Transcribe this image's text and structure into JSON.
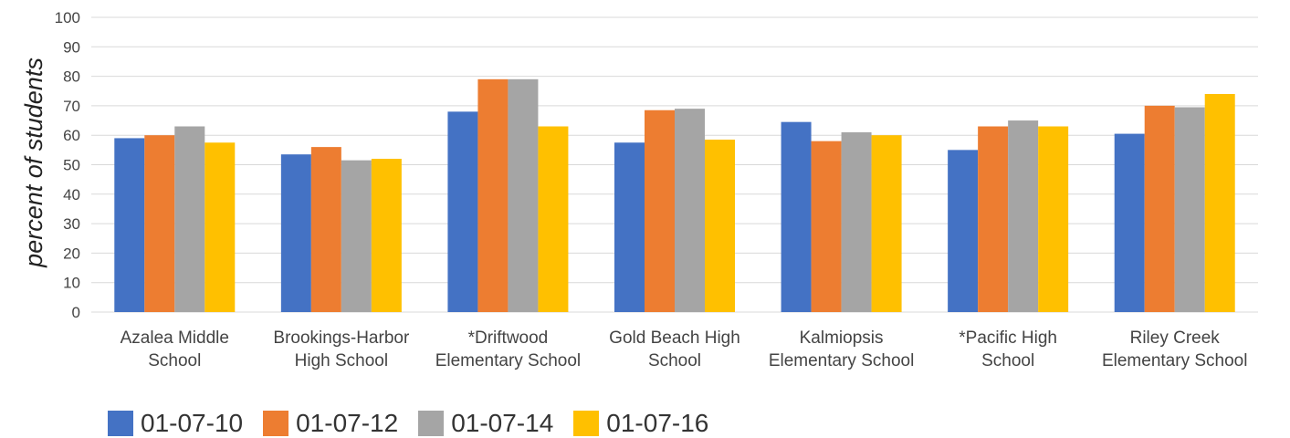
{
  "chart_data": {
    "type": "bar",
    "title": "",
    "xlabel": "",
    "ylabel": "percent of students",
    "ylim": [
      0,
      100
    ],
    "yticks": [
      "0",
      "10",
      "20",
      "30",
      "40",
      "50",
      "60",
      "70",
      "80",
      "90",
      "100"
    ],
    "grid": true,
    "legend_position": "bottom",
    "categories": [
      [
        "Azalea Middle",
        "School"
      ],
      [
        "Brookings-Harbor",
        "High School"
      ],
      [
        "*Driftwood",
        "Elementary School"
      ],
      [
        "Gold Beach High",
        "School"
      ],
      [
        "Kalmiopsis",
        "Elementary School"
      ],
      [
        "*Pacific High",
        "School"
      ],
      [
        "Riley Creek",
        "Elementary School"
      ]
    ],
    "series": [
      {
        "name": "01-07-10",
        "color": "#4472C4",
        "values": [
          59,
          53.5,
          68,
          57.5,
          64.5,
          55,
          60.5
        ]
      },
      {
        "name": "01-07-12",
        "color": "#ED7D31",
        "values": [
          60,
          56,
          79,
          68.5,
          58,
          63,
          70
        ]
      },
      {
        "name": "01-07-14",
        "color": "#A5A5A5",
        "values": [
          63,
          51.5,
          79,
          69,
          61,
          65,
          69.5
        ]
      },
      {
        "name": "01-07-16",
        "color": "#FFC000",
        "values": [
          57.5,
          52,
          63,
          58.5,
          60,
          63,
          74
        ]
      }
    ]
  }
}
